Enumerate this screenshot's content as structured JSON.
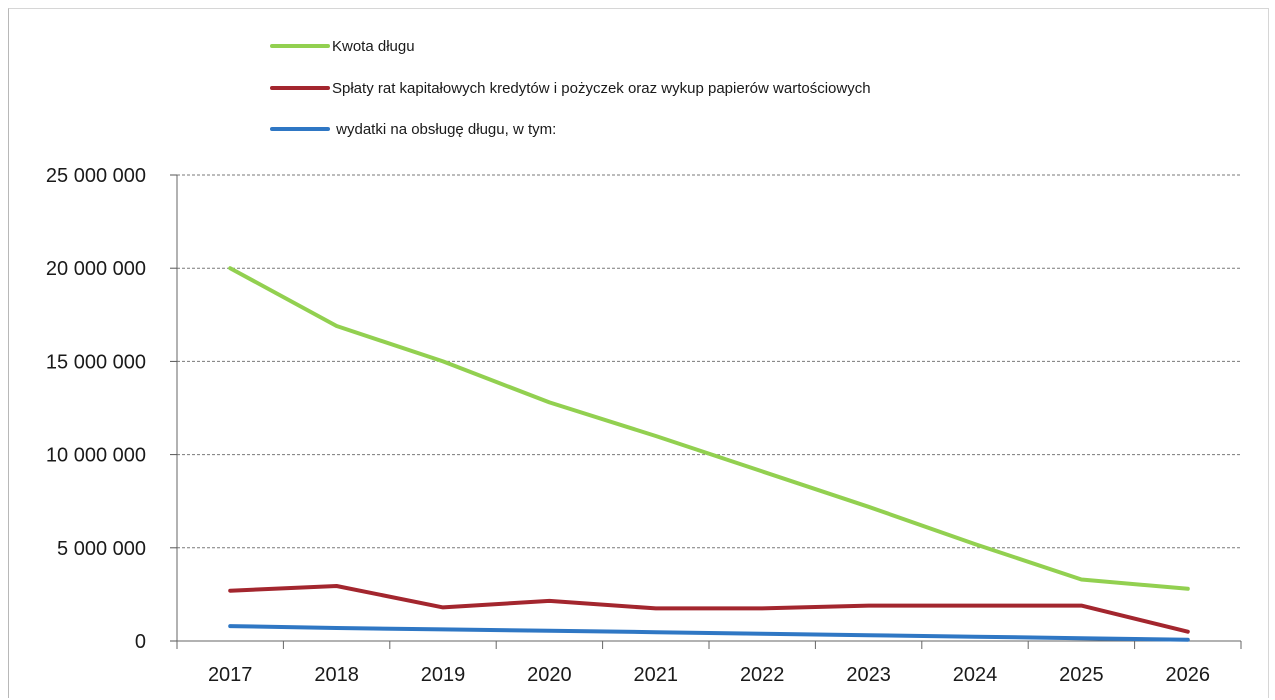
{
  "chart_data": {
    "type": "line",
    "title": "",
    "xlabel": "",
    "ylabel": "",
    "categories": [
      "2017",
      "2018",
      "2019",
      "2020",
      "2021",
      "2022",
      "2023",
      "2024",
      "2025",
      "2026"
    ],
    "ylim": [
      0,
      25000000
    ],
    "yticks": [
      0,
      5000000,
      10000000,
      15000000,
      20000000,
      25000000
    ],
    "ytick_labels": [
      "0",
      "5 000 000",
      "10 000 000",
      "15 000 000",
      "20 000 000",
      "25 000 000"
    ],
    "grid": "horizontal dashed",
    "legend_position": "top",
    "series": [
      {
        "name": "Kwota długu",
        "color": "#92d050",
        "values": [
          20000000,
          16900000,
          15000000,
          12800000,
          11000000,
          9100000,
          7200000,
          5200000,
          3300000,
          2800000
        ]
      },
      {
        "name": "Spłaty rat kapitałowych kredytów i pożyczek oraz wykup papierów wartościowych",
        "color": "#a3262e",
        "values": [
          2700000,
          2950000,
          1800000,
          2150000,
          1750000,
          1750000,
          1900000,
          1900000,
          1900000,
          500000
        ]
      },
      {
        "name": " wydatki na obsługę długu, w tym:",
        "color": "#2f77c4",
        "values": [
          800000,
          700000,
          620000,
          550000,
          470000,
          390000,
          310000,
          230000,
          150000,
          70000
        ]
      }
    ]
  }
}
